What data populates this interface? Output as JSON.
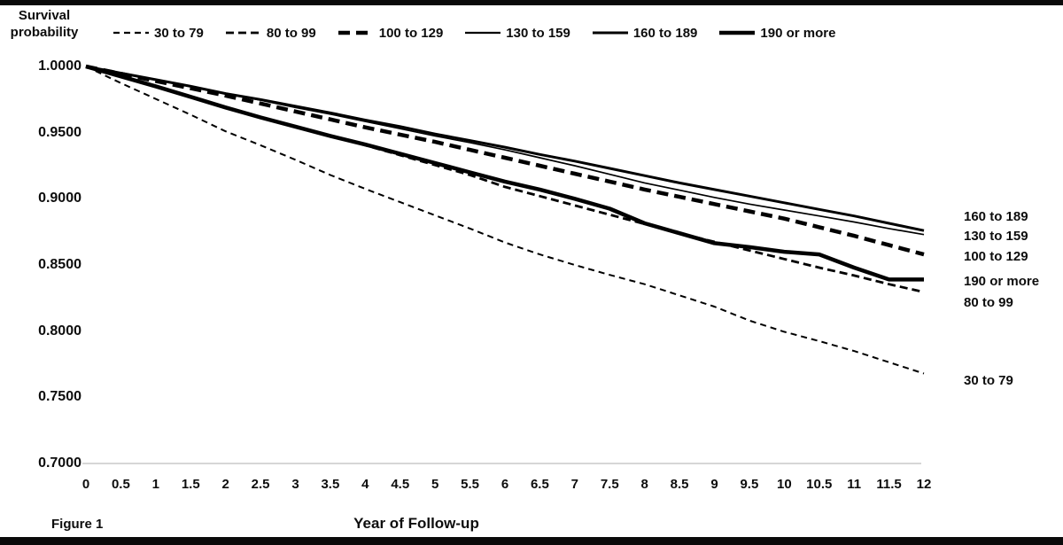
{
  "figure": {
    "caption": "Figure 1",
    "y_axis_title_line1": "Survival",
    "y_axis_title_line2": "probability",
    "x_axis_title": "Year of Follow-up"
  },
  "chart_data": {
    "type": "line",
    "title": "",
    "xlabel": "Year of Follow-up",
    "ylabel": "Survival probability",
    "xlim": [
      0,
      12
    ],
    "ylim": [
      0.7,
      1.0
    ],
    "grid": false,
    "legend_position": "top",
    "line_color": "#000000",
    "baseline_color": "#c9c9c9",
    "y_tick_labels": [
      "1.0000",
      "0.9500",
      "0.9000",
      "0.8500",
      "0.8000",
      "0.7500",
      "0.7000"
    ],
    "x_tick_labels": [
      "0",
      "0.5",
      "1",
      "1.5",
      "2",
      "2.5",
      "3",
      "3.5",
      "4",
      "4.5",
      "5",
      "5.5",
      "6",
      "6.5",
      "7",
      "7.5",
      "8",
      "8.5",
      "9",
      "9.5",
      "10",
      "10.5",
      "11",
      "11.5",
      "12"
    ],
    "x": [
      0,
      0.5,
      1,
      1.5,
      2,
      2.5,
      3,
      3.5,
      4,
      4.5,
      5,
      5.5,
      6,
      6.5,
      7,
      7.5,
      8,
      8.5,
      9,
      9.5,
      10,
      10.5,
      11,
      11.5,
      12
    ],
    "series": [
      {
        "name": "30 to 79",
        "line": "thin-dashed",
        "values": [
          1.0,
          0.9875,
          0.9755,
          0.9635,
          0.951,
          0.9405,
          0.9295,
          0.918,
          0.9075,
          0.8975,
          0.8875,
          0.8775,
          0.867,
          0.858,
          0.85,
          0.8425,
          0.8355,
          0.827,
          0.8185,
          0.808,
          0.7995,
          0.7925,
          0.785,
          0.7765,
          0.768
        ]
      },
      {
        "name": "80 to 99",
        "line": "med-dashed",
        "values": [
          1.0,
          0.9925,
          0.985,
          0.977,
          0.969,
          0.9615,
          0.9545,
          0.9475,
          0.9405,
          0.933,
          0.9255,
          0.918,
          0.909,
          0.902,
          0.895,
          0.888,
          0.881,
          0.874,
          0.8675,
          0.861,
          0.8545,
          0.848,
          0.842,
          0.8355,
          0.8295
        ]
      },
      {
        "name": "100 to 129",
        "line": "thick-dashed",
        "values": [
          1.0,
          0.9945,
          0.989,
          0.9835,
          0.978,
          0.972,
          0.966,
          0.96,
          0.954,
          0.9485,
          0.943,
          0.937,
          0.931,
          0.925,
          0.919,
          0.913,
          0.907,
          0.9015,
          0.896,
          0.8905,
          0.885,
          0.8785,
          0.872,
          0.865,
          0.858
        ]
      },
      {
        "name": "130 to 159",
        "line": "thin-solid",
        "values": [
          1.0,
          0.995,
          0.99,
          0.985,
          0.9795,
          0.9745,
          0.969,
          0.964,
          0.9585,
          0.953,
          0.9475,
          0.9425,
          0.937,
          0.931,
          0.925,
          0.9185,
          0.912,
          0.9065,
          0.901,
          0.896,
          0.8915,
          0.887,
          0.8825,
          0.8775,
          0.873
        ]
      },
      {
        "name": "160 to 189",
        "line": "med-solid",
        "values": [
          1.0,
          0.995,
          0.99,
          0.985,
          0.9795,
          0.975,
          0.97,
          0.965,
          0.9595,
          0.9545,
          0.949,
          0.944,
          0.939,
          0.9335,
          0.9285,
          0.923,
          0.9175,
          0.912,
          0.907,
          0.902,
          0.897,
          0.892,
          0.887,
          0.8815,
          0.876
        ]
      },
      {
        "name": "190 or more",
        "line": "thick-solid",
        "values": [
          1.0,
          0.9925,
          0.985,
          0.977,
          0.969,
          0.9615,
          0.9545,
          0.9475,
          0.941,
          0.934,
          0.927,
          0.92,
          0.913,
          0.907,
          0.9,
          0.8925,
          0.8815,
          0.874,
          0.8665,
          0.8635,
          0.86,
          0.858,
          0.848,
          0.839,
          0.839
        ]
      }
    ],
    "end_labels": [
      "160 to 189",
      "130 to 159",
      "100 to 129",
      "190 or more",
      "80 to 99",
      "30 to 79"
    ]
  }
}
